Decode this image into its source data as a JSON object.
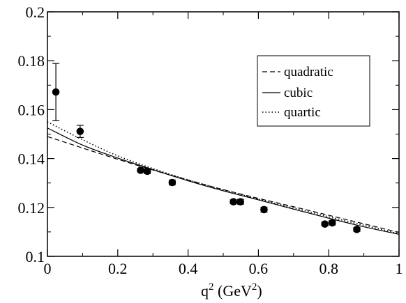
{
  "chart_data": {
    "type": "scatter",
    "xlabel_base": "q",
    "xlabel_sup": "2",
    "xlabel_unit_open": " (GeV",
    "xlabel_unit_sup": "2",
    "xlabel_unit_close": ")",
    "ylabel": "",
    "xlim": [
      0,
      1
    ],
    "ylim": [
      0.1,
      0.2
    ],
    "x_ticks": [
      0,
      0.2,
      0.4,
      0.6,
      0.8,
      1
    ],
    "x_tick_labels": [
      "0",
      "0.2",
      "0.4",
      "0.6",
      "0.8",
      "1"
    ],
    "y_ticks": [
      0.1,
      0.12,
      0.14,
      0.16,
      0.18,
      0.2
    ],
    "y_tick_labels": [
      "0.1",
      "0.12",
      "0.14",
      "0.16",
      "0.18",
      "0.2"
    ],
    "grid": false,
    "legend_position": "top-right",
    "points": [
      {
        "x": 0.024,
        "y": 0.1672,
        "err": 0.0117
      },
      {
        "x": 0.093,
        "y": 0.1511,
        "err": 0.0025
      },
      {
        "x": 0.265,
        "y": 0.1352,
        "err": 0.0007
      },
      {
        "x": 0.284,
        "y": 0.1348,
        "err": 0.001
      },
      {
        "x": 0.355,
        "y": 0.1302,
        "err": 0.001
      },
      {
        "x": 0.529,
        "y": 0.1223,
        "err": 0.0008
      },
      {
        "x": 0.549,
        "y": 0.1223,
        "err": 0.001
      },
      {
        "x": 0.616,
        "y": 0.1191,
        "err": 0.001
      },
      {
        "x": 0.789,
        "y": 0.1132,
        "err": 0.0008
      },
      {
        "x": 0.81,
        "y": 0.1137,
        "err": 0.0009
      },
      {
        "x": 0.88,
        "y": 0.111,
        "err": 0.0008
      }
    ],
    "series": [
      {
        "name": "quadratic",
        "dash": "dashed",
        "x": [
          0,
          0.1,
          0.2,
          0.3,
          0.4,
          0.5,
          0.6,
          0.7,
          0.8,
          0.9,
          1.0
        ],
        "y": [
          0.149,
          0.1443,
          0.1397,
          0.1353,
          0.1312,
          0.1273,
          0.1237,
          0.1203,
          0.1168,
          0.1133,
          0.1098
        ]
      },
      {
        "name": "cubic",
        "dash": "solid",
        "x": [
          0,
          0.1,
          0.2,
          0.3,
          0.4,
          0.5,
          0.6,
          0.7,
          0.8,
          0.9,
          1.0
        ],
        "y": [
          0.1525,
          0.1455,
          0.1402,
          0.1355,
          0.1309,
          0.1268,
          0.1231,
          0.1193,
          0.1156,
          0.1121,
          0.109
        ]
      },
      {
        "name": "quartic",
        "dash": "dotted",
        "x": [
          0,
          0.1,
          0.2,
          0.3,
          0.4,
          0.5,
          0.6,
          0.7,
          0.8,
          0.9,
          1.0
        ],
        "y": [
          0.155,
          0.1477,
          0.1411,
          0.1359,
          0.1313,
          0.1272,
          0.1234,
          0.1198,
          0.1162,
          0.1127,
          0.1093
        ]
      }
    ]
  }
}
